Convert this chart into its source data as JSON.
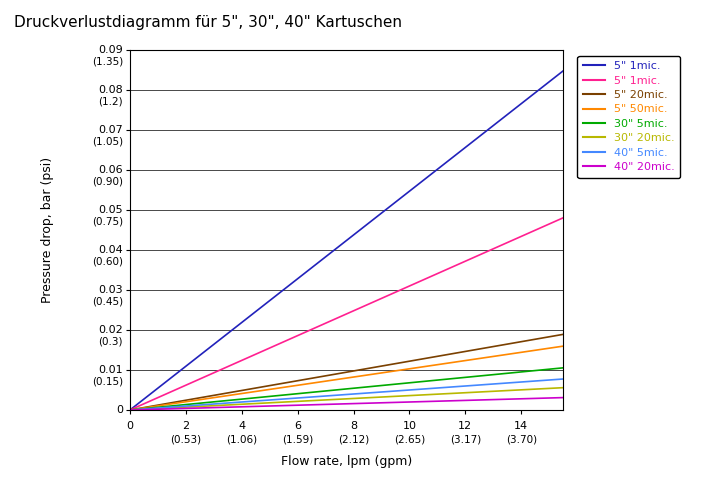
{
  "title": "Druckverlustdiagramm für 5\", 30\", 40\" Kartuschen",
  "xlabel": "Flow rate, lpm (gpm)",
  "ylabel": "Pressure drop, bar (psi)",
  "xlim": [
    0,
    15.5
  ],
  "ylim": [
    0,
    0.09
  ],
  "yticks": [
    0.0,
    0.01,
    0.02,
    0.03,
    0.04,
    0.05,
    0.06,
    0.07,
    0.08,
    0.09
  ],
  "ytick_labels_bar": [
    "0",
    "0.01",
    "0.02",
    "0.03",
    "0.04",
    "0.05",
    "0.06",
    "0.07",
    "0.08",
    "0.09"
  ],
  "ytick_labels_psi": [
    "",
    "(0.15)",
    "(0.3)",
    "(0.45)",
    "(0.60)",
    "(0.75)",
    "(0.90)",
    "(1.05)",
    "(1.2)",
    "(1.35)"
  ],
  "xticks": [
    0,
    2,
    4,
    6,
    8,
    10,
    12,
    14
  ],
  "xtick_labels_lpm": [
    "0",
    "2",
    "4",
    "6",
    "8",
    "10",
    "12",
    "14"
  ],
  "xtick_labels_gpm": [
    "",
    "(0.53)",
    "(1.06)",
    "(1.59)",
    "(2.12)",
    "(2.65)",
    "(3.17)",
    "(3.70)"
  ],
  "series": [
    {
      "label": "5\" 1mic.",
      "color": "#2222bb",
      "slope": 0.00547
    },
    {
      "label": "5\" 1mic.",
      "color": "#ff2090",
      "slope": 0.0031
    },
    {
      "label": "5\" 20mic.",
      "color": "#7a4000",
      "slope": 0.00122
    },
    {
      "label": "5\" 50mic.",
      "color": "#ff8800",
      "slope": 0.00103
    },
    {
      "label": "30\" 5mic.",
      "color": "#00aa00",
      "slope": 0.00068
    },
    {
      "label": "30\" 20mic.",
      "color": "#b8b800",
      "slope": 0.00036
    },
    {
      "label": "40\" 5mic.",
      "color": "#4488ff",
      "slope": 0.0005
    },
    {
      "label": "40\" 20mic.",
      "color": "#cc00cc",
      "slope": 0.0002
    }
  ],
  "bg_color": "#ffffff",
  "title_fontsize": 11,
  "tick_fontsize": 8,
  "label_fontsize": 9,
  "legend_fontsize": 8
}
